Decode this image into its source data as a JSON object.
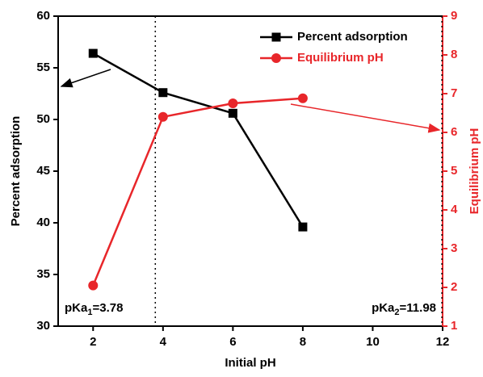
{
  "chart_data": {
    "type": "line",
    "x_label": "Initial pH",
    "y_label": "Percent adsorption",
    "y2_label": "Equilibrium pH",
    "x": [
      2,
      4,
      6,
      8
    ],
    "series": [
      {
        "name": "Percent adsorption",
        "color": "#000000",
        "marker": "square",
        "values": [
          56.4,
          52.6,
          50.6,
          39.6
        ]
      },
      {
        "name": "Equilibrium pH",
        "color": "#e8262a",
        "marker": "circle",
        "axis": "y2",
        "values": [
          2.05,
          6.4,
          6.75,
          6.88
        ]
      }
    ],
    "xlim": [
      1,
      12
    ],
    "xticks": [
      2,
      4,
      6,
      8,
      10,
      12
    ],
    "ylim": [
      30,
      60
    ],
    "yticks": [
      30,
      35,
      40,
      45,
      50,
      55,
      60
    ],
    "y2lim": [
      1,
      9
    ],
    "y2ticks": [
      1,
      2,
      3,
      4,
      5,
      6,
      7,
      8,
      9
    ],
    "vlines": [
      3.78,
      11.98
    ],
    "annotations": [
      {
        "pre": "pKa",
        "sub": "1",
        "post": "=3.78"
      },
      {
        "pre": "pKa",
        "sub": "2",
        "post": "=11.98"
      }
    ],
    "legend": "upper right"
  }
}
